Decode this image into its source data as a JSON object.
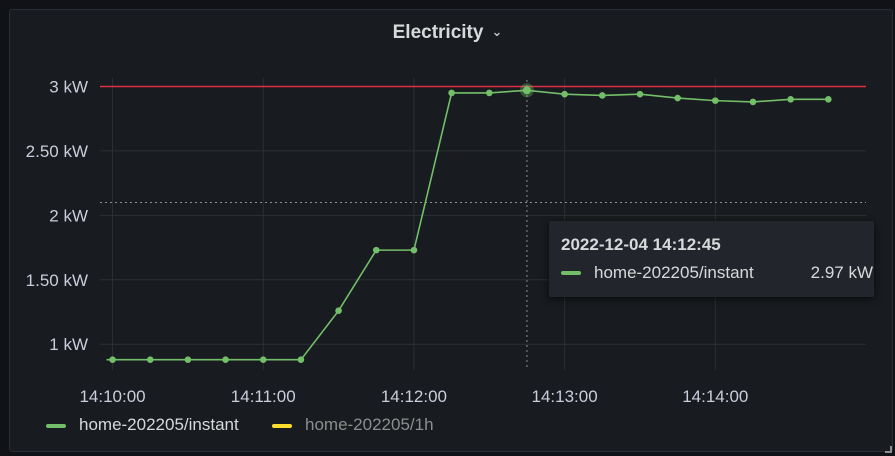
{
  "panel": {
    "title": "Electricity"
  },
  "chart_data": {
    "type": "line",
    "x_ticks": [
      "14:10:00",
      "14:11:00",
      "14:12:00",
      "14:13:00",
      "14:14:00"
    ],
    "y_ticks": [
      "1 kW",
      "1.50 kW",
      "2 kW",
      "2.50 kW",
      "3 kW"
    ],
    "y_unit": "kW",
    "xlim": [
      "14:09:55",
      "14:15:00"
    ],
    "ylim": [
      0.8,
      3.05
    ],
    "threshold": {
      "value": 3,
      "color": "#e02f44"
    },
    "series": [
      {
        "name": "home-202205/instant",
        "color": "#73bf69",
        "x": [
          "14:10:00",
          "14:10:15",
          "14:10:30",
          "14:10:45",
          "14:11:00",
          "14:11:15",
          "14:11:30",
          "14:11:45",
          "14:12:00",
          "14:12:15",
          "14:12:30",
          "14:12:45",
          "14:13:00",
          "14:13:15",
          "14:13:30",
          "14:13:45",
          "14:14:00",
          "14:14:15",
          "14:14:30",
          "14:14:45"
        ],
        "values": [
          0.88,
          0.88,
          0.88,
          0.88,
          0.88,
          0.88,
          1.26,
          1.73,
          1.73,
          2.95,
          2.95,
          2.97,
          2.94,
          2.93,
          2.94,
          2.91,
          2.89,
          2.88,
          2.9,
          2.9
        ]
      },
      {
        "name": "home-202205/1h",
        "color": "#fade2a",
        "hidden": true,
        "values": []
      }
    ],
    "legend_position": "bottom-left",
    "grid": true,
    "crosshair": {
      "time": "14:12:45",
      "value": 2.1
    }
  },
  "tooltip": {
    "time": "2022-12-04 14:12:45",
    "series_name": "home-202205/instant",
    "value": "2.97 kW"
  },
  "legend": [
    {
      "label": "home-202205/instant",
      "color": "#73bf69",
      "active": true
    },
    {
      "label": "home-202205/1h",
      "color": "#fade2a",
      "active": false
    }
  ],
  "icons": {
    "title_menu": "chevron-down-icon",
    "resize": "resize-handle-icon"
  }
}
